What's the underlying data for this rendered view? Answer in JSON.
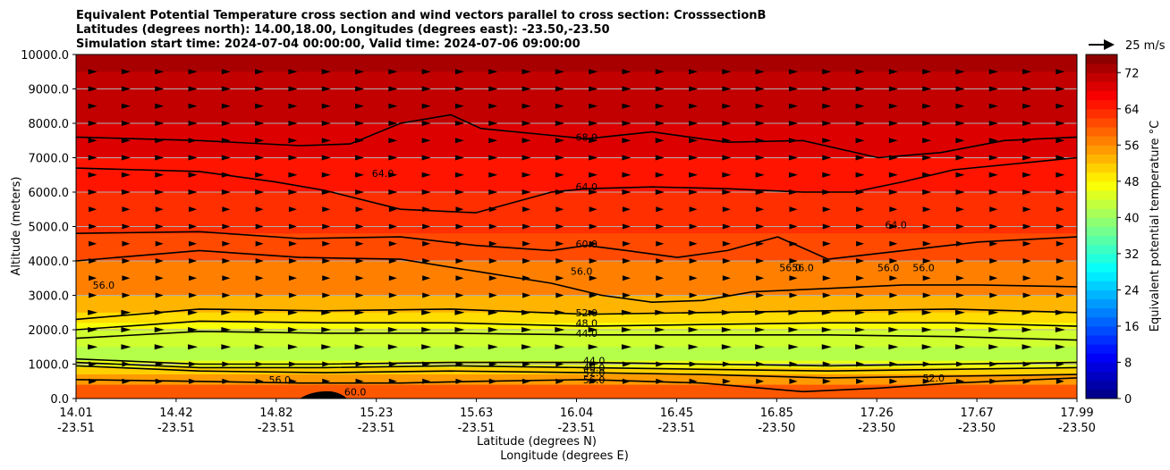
{
  "chart_data": {
    "type": "contour",
    "title_lines": [
      "Equivalent Potential Temperature cross section and wind vectors parallel to cross section: CrosssectionB",
      "Latitudes (degrees north): 14.00,18.00, Longitudes (degrees east): -23.50,-23.50",
      "Simulation start time: 2024-07-04 00:00:00, Valid time: 2024-07-06 09:00:00"
    ],
    "xlabel_lat": "Latitude (degrees N)",
    "xlabel_lon": "Longitude (degrees E)",
    "ylabel": "Altitude (meters)",
    "xlim": [
      14.01,
      17.99
    ],
    "ylim": [
      0,
      10000
    ],
    "grid": "horizontal",
    "x_ticks": [
      {
        "lat": "14.01",
        "lon": "-23.51"
      },
      {
        "lat": "14.42",
        "lon": "-23.51"
      },
      {
        "lat": "14.82",
        "lon": "-23.51"
      },
      {
        "lat": "15.23",
        "lon": "-23.51"
      },
      {
        "lat": "15.63",
        "lon": "-23.51"
      },
      {
        "lat": "16.04",
        "lon": "-23.51"
      },
      {
        "lat": "16.45",
        "lon": "-23.51"
      },
      {
        "lat": "16.85",
        "lon": "-23.50"
      },
      {
        "lat": "17.26",
        "lon": "-23.50"
      },
      {
        "lat": "17.67",
        "lon": "-23.50"
      },
      {
        "lat": "17.99",
        "lon": "-23.50"
      }
    ],
    "y_ticks": [
      "0.0",
      "1000.0",
      "2000.0",
      "3000.0",
      "4000.0",
      "5000.0",
      "6000.0",
      "7000.0",
      "8000.0",
      "9000.0",
      "10000.0"
    ],
    "colorbar": {
      "label": "Equivalent potential temperature °C",
      "range": [
        0,
        76
      ],
      "step": 2,
      "ticks": [
        "0",
        "8",
        "16",
        "24",
        "32",
        "40",
        "48",
        "56",
        "64",
        "72"
      ]
    },
    "quiver_key": "25 m/s",
    "filled_bands": [
      {
        "y": [
          9500,
          10000
        ],
        "value": 73
      },
      {
        "y": [
          8000,
          9500
        ],
        "value": 71
      },
      {
        "y": [
          7000,
          8000
        ],
        "value": 69
      },
      {
        "y": [
          6000,
          7000
        ],
        "value": 65
      },
      {
        "y": [
          4800,
          6000
        ],
        "value": 63
      },
      {
        "y": [
          4000,
          4800
        ],
        "value": 61
      },
      {
        "y": [
          3000,
          4000
        ],
        "value": 57
      },
      {
        "y": [
          2500,
          3000
        ],
        "value": 53
      },
      {
        "y": [
          2200,
          2500
        ],
        "value": 50
      },
      {
        "y": [
          2000,
          2200
        ],
        "value": 47
      },
      {
        "y": [
          1500,
          2000
        ],
        "value": 44
      },
      {
        "y": [
          1100,
          1500
        ],
        "value": 42
      },
      {
        "y": [
          900,
          1100
        ],
        "value": 46
      },
      {
        "y": [
          700,
          900
        ],
        "value": 51
      },
      {
        "y": [
          400,
          700
        ],
        "value": 55
      },
      {
        "y": [
          0,
          400
        ],
        "value": 60
      }
    ],
    "contours": [
      {
        "value": "68.0",
        "x": [
          14.01,
          14.5,
          14.9,
          15.1,
          15.3,
          15.5,
          15.62,
          16.04,
          16.3,
          16.6,
          16.9,
          17.2,
          17.45,
          17.7,
          17.99
        ],
        "y": [
          7600,
          7500,
          7350,
          7400,
          8000,
          8250,
          7850,
          7550,
          7750,
          7450,
          7500,
          7000,
          7150,
          7500,
          7600
        ]
      },
      {
        "value": "64.0",
        "x": [
          14.01,
          14.5,
          14.8,
          15.0,
          15.3,
          15.6,
          15.9,
          16.04,
          16.3,
          16.6,
          16.9,
          17.1,
          17.3,
          17.5,
          17.99
        ],
        "y": [
          6700,
          6600,
          6300,
          6050,
          5500,
          5400,
          6000,
          6100,
          6150,
          6100,
          6000,
          6000,
          6300,
          6650,
          7000
        ]
      },
      {
        "value": "60.0",
        "x": [
          14.01,
          14.5,
          14.9,
          15.3,
          15.6,
          15.9,
          16.04,
          16.2,
          16.4,
          16.6,
          16.8,
          17.0,
          17.3,
          17.6,
          17.99
        ],
        "y": [
          4800,
          4850,
          4650,
          4700,
          4450,
          4300,
          4450,
          4300,
          4100,
          4300,
          4700,
          4050,
          4300,
          4550,
          4700
        ]
      },
      {
        "value": "56.0",
        "x": [
          14.01,
          14.5,
          14.9,
          15.3,
          15.6,
          15.9,
          16.1,
          16.3,
          16.5,
          16.7,
          17.0,
          17.3,
          17.6,
          17.99
        ],
        "y": [
          4000,
          4300,
          4100,
          4050,
          3700,
          3350,
          3000,
          2800,
          2850,
          3100,
          3200,
          3300,
          3300,
          3250
        ]
      },
      {
        "value": "52.0",
        "x": [
          14.01,
          14.5,
          15.0,
          15.5,
          16.04,
          16.5,
          17.0,
          17.5,
          17.99
        ],
        "y": [
          2300,
          2600,
          2550,
          2600,
          2450,
          2500,
          2550,
          2600,
          2500
        ]
      },
      {
        "value": "48.0",
        "x": [
          14.01,
          14.5,
          15.0,
          15.5,
          16.04,
          16.5,
          17.0,
          17.5,
          17.99
        ],
        "y": [
          2000,
          2250,
          2200,
          2200,
          2100,
          2150,
          2200,
          2200,
          2100
        ]
      },
      {
        "value": "44.0",
        "x": [
          14.01,
          14.5,
          15.0,
          15.5,
          16.04,
          16.5,
          17.0,
          17.5,
          17.99
        ],
        "y": [
          1750,
          1950,
          1900,
          1900,
          1850,
          1850,
          1850,
          1800,
          1700
        ]
      },
      {
        "value": "44.0",
        "x": [
          14.01,
          14.5,
          15.0,
          15.5,
          16.04,
          16.5,
          17.0,
          17.5,
          17.99
        ],
        "y": [
          1150,
          1000,
          1000,
          1050,
          1050,
          1000,
          950,
          1000,
          1050
        ]
      },
      {
        "value": "48.0",
        "x": [
          14.01,
          14.5,
          15.0,
          15.5,
          16.04,
          16.5,
          17.0,
          17.5,
          17.99
        ],
        "y": [
          1050,
          900,
          900,
          950,
          900,
          850,
          800,
          850,
          900
        ]
      },
      {
        "value": "52.0",
        "x": [
          14.01,
          14.5,
          15.0,
          15.5,
          16.04,
          16.5,
          17.0,
          17.5,
          17.99
        ],
        "y": [
          950,
          800,
          750,
          800,
          750,
          700,
          600,
          650,
          700
        ]
      },
      {
        "value": "56.0",
        "x": [
          14.01,
          14.5,
          14.9,
          15.3,
          15.6,
          16.04,
          16.5,
          16.9,
          17.2,
          17.5,
          17.99
        ],
        "y": [
          550,
          500,
          450,
          450,
          500,
          550,
          450,
          200,
          300,
          450,
          600
        ]
      }
    ],
    "contour_labels": [
      {
        "text": "68.0",
        "x": 16.04,
        "y": 7600
      },
      {
        "text": "64.0",
        "x": 15.23,
        "y": 6550
      },
      {
        "text": "64.0",
        "x": 16.04,
        "y": 6150
      },
      {
        "text": "64.0",
        "x": 17.27,
        "y": 5050
      },
      {
        "text": "60.0",
        "x": 16.04,
        "y": 4500
      },
      {
        "text": "56.0",
        "x": 16.02,
        "y": 3700
      },
      {
        "text": "56.0",
        "x": 14.12,
        "y": 3300
      },
      {
        "text": "56.0",
        "x": 16.85,
        "y": 3800
      },
      {
        "text": "56.0",
        "x": 16.9,
        "y": 3800
      },
      {
        "text": "56.0",
        "x": 17.24,
        "y": 3800
      },
      {
        "text": "56.0",
        "x": 17.38,
        "y": 3800
      },
      {
        "text": "52.0",
        "x": 16.04,
        "y": 2500
      },
      {
        "text": "48.0",
        "x": 16.04,
        "y": 2200
      },
      {
        "text": "44.0",
        "x": 16.04,
        "y": 1900
      },
      {
        "text": "44.0",
        "x": 16.07,
        "y": 1100
      },
      {
        "text": "48.0",
        "x": 16.07,
        "y": 900
      },
      {
        "text": "52.0",
        "x": 16.07,
        "y": 750
      },
      {
        "text": "56.0",
        "x": 16.07,
        "y": 550
      },
      {
        "text": "56.0",
        "x": 14.82,
        "y": 550
      },
      {
        "text": "60.0",
        "x": 15.12,
        "y": 200
      },
      {
        "text": "52.0",
        "x": 17.42,
        "y": 600
      }
    ]
  }
}
